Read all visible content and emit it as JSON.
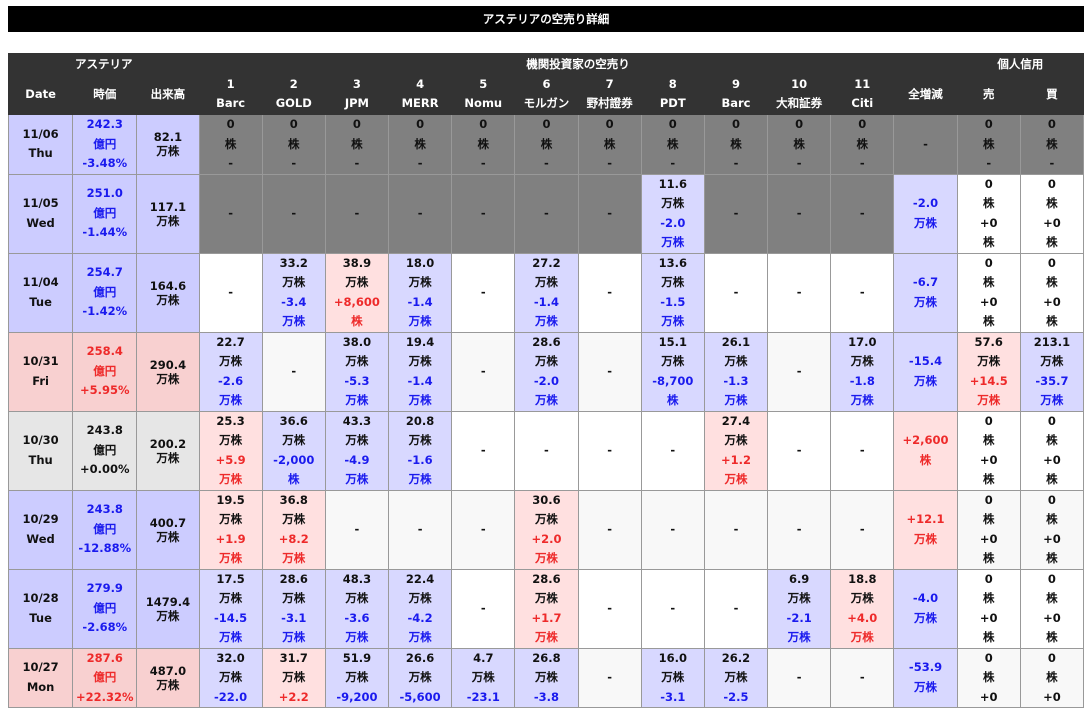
{
  "title": "アステリアの空売り詳細",
  "colors": {
    "down_text": "#1a1aee",
    "up_text": "#ee2a2a",
    "down_bg": "#d8d8ff",
    "up_bg": "#ffe0e0",
    "header_bg": "#333333",
    "no_data_bg": "#808080"
  },
  "header": {
    "group_company": "アステリア",
    "group_institutions": "機関投資家の空売り",
    "group_individual": "個人信用",
    "date": "Date",
    "price": "時価",
    "volume": "出来高",
    "brokers": [
      {
        "no": "1",
        "name": "Barc"
      },
      {
        "no": "2",
        "name": "GOLD"
      },
      {
        "no": "3",
        "name": "JPM"
      },
      {
        "no": "4",
        "name": "MERR"
      },
      {
        "no": "5",
        "name": "Nomu"
      },
      {
        "no": "6",
        "name": "モルガン"
      },
      {
        "no": "7",
        "name": "野村證券"
      },
      {
        "no": "8",
        "name": "PDT"
      },
      {
        "no": "9",
        "name": "Barc"
      },
      {
        "no": "10",
        "name": "大和証券"
      },
      {
        "no": "11",
        "name": "Citi"
      }
    ],
    "total": "全増減",
    "sell": "売",
    "buy": "買"
  },
  "rows": [
    {
      "date": "11/06",
      "dow": "Thu",
      "tone": "down",
      "price": "242.3",
      "price_unit": "億円",
      "pct": "-3.48%",
      "volume": "82.1",
      "volume_unit": "万株",
      "alt": false,
      "brokers": [
        {
          "bg": "gray",
          "value": "0",
          "unit": "株",
          "change": "-"
        },
        {
          "bg": "gray",
          "value": "0",
          "unit": "株",
          "change": "-"
        },
        {
          "bg": "gray",
          "value": "0",
          "unit": "株",
          "change": "-"
        },
        {
          "bg": "gray",
          "value": "0",
          "unit": "株",
          "change": "-"
        },
        {
          "bg": "gray",
          "value": "0",
          "unit": "株",
          "change": "-"
        },
        {
          "bg": "gray",
          "value": "0",
          "unit": "株",
          "change": "-"
        },
        {
          "bg": "gray",
          "value": "0",
          "unit": "株",
          "change": "-"
        },
        {
          "bg": "gray",
          "value": "0",
          "unit": "株",
          "change": "-"
        },
        {
          "bg": "gray",
          "value": "0",
          "unit": "株",
          "change": "-"
        },
        {
          "bg": "gray",
          "value": "0",
          "unit": "株",
          "change": "-"
        },
        {
          "bg": "gray",
          "value": "0",
          "unit": "株",
          "change": "-"
        }
      ],
      "total": {
        "bg": "gray",
        "value": "-"
      },
      "sell": {
        "bg": "gray",
        "value": "0",
        "unit": "株",
        "change": "-"
      },
      "buy": {
        "bg": "gray",
        "value": "0",
        "unit": "株",
        "change": "-"
      }
    },
    {
      "date": "11/05",
      "dow": "Wed",
      "tone": "down",
      "price": "251.0",
      "price_unit": "億円",
      "pct": "-1.44%",
      "volume": "117.1",
      "volume_unit": "万株",
      "alt": false,
      "brokers": [
        {
          "bg": "gray",
          "value": "-"
        },
        {
          "bg": "gray",
          "value": "-"
        },
        {
          "bg": "gray",
          "value": "-"
        },
        {
          "bg": "gray",
          "value": "-"
        },
        {
          "bg": "gray",
          "value": "-"
        },
        {
          "bg": "gray",
          "value": "-"
        },
        {
          "bg": "gray",
          "value": "-"
        },
        {
          "bg": "down",
          "value": "11.6",
          "unit": "万株",
          "change": "-2.0",
          "change_unit": "万株"
        },
        {
          "bg": "gray",
          "value": "-"
        },
        {
          "bg": "gray",
          "value": "-"
        },
        {
          "bg": "gray",
          "value": "-"
        }
      ],
      "total": {
        "bg": "down",
        "change": "-2.0",
        "change_unit": "万株"
      },
      "sell": {
        "bg": "white",
        "value": "0",
        "unit": "株",
        "change": "+0",
        "change_unit": "株"
      },
      "buy": {
        "bg": "white",
        "value": "0",
        "unit": "株",
        "change": "+0",
        "change_unit": "株"
      }
    },
    {
      "date": "11/04",
      "dow": "Tue",
      "tone": "down",
      "price": "254.7",
      "price_unit": "億円",
      "pct": "-1.42%",
      "volume": "164.6",
      "volume_unit": "万株",
      "alt": false,
      "brokers": [
        {
          "value": "-"
        },
        {
          "bg": "down",
          "value": "33.2",
          "unit": "万株",
          "change": "-3.4",
          "change_unit": "万株"
        },
        {
          "bg": "up",
          "value": "38.9",
          "unit": "万株",
          "change": "+8,600",
          "change_unit": "株"
        },
        {
          "bg": "down",
          "value": "18.0",
          "unit": "万株",
          "change": "-1.4",
          "change_unit": "万株"
        },
        {
          "value": "-"
        },
        {
          "bg": "down",
          "value": "27.2",
          "unit": "万株",
          "change": "-1.4",
          "change_unit": "万株"
        },
        {
          "value": "-"
        },
        {
          "bg": "down",
          "value": "13.6",
          "unit": "万株",
          "change": "-1.5",
          "change_unit": "万株"
        },
        {
          "value": "-"
        },
        {
          "value": "-"
        },
        {
          "value": "-"
        }
      ],
      "total": {
        "bg": "down",
        "change": "-6.7",
        "change_unit": "万株"
      },
      "sell": {
        "value": "0",
        "unit": "株",
        "change": "+0",
        "change_unit": "株"
      },
      "buy": {
        "value": "0",
        "unit": "株",
        "change": "+0",
        "change_unit": "株"
      }
    },
    {
      "date": "10/31",
      "dow": "Fri",
      "tone": "up",
      "price": "258.4",
      "price_unit": "億円",
      "pct": "+5.95%",
      "volume": "290.4",
      "volume_unit": "万株",
      "alt": true,
      "brokers": [
        {
          "bg": "down",
          "value": "22.7",
          "unit": "万株",
          "change": "-2.6",
          "change_unit": "万株"
        },
        {
          "value": "-"
        },
        {
          "bg": "down",
          "value": "38.0",
          "unit": "万株",
          "change": "-5.3",
          "change_unit": "万株"
        },
        {
          "bg": "down",
          "value": "19.4",
          "unit": "万株",
          "change": "-1.4",
          "change_unit": "万株"
        },
        {
          "value": "-"
        },
        {
          "bg": "down",
          "value": "28.6",
          "unit": "万株",
          "change": "-2.0",
          "change_unit": "万株"
        },
        {
          "value": "-"
        },
        {
          "bg": "down",
          "value": "15.1",
          "unit": "万株",
          "change": "-8,700",
          "change_unit": "株"
        },
        {
          "bg": "down",
          "value": "26.1",
          "unit": "万株",
          "change": "-1.3",
          "change_unit": "万株"
        },
        {
          "value": "-"
        },
        {
          "bg": "down",
          "value": "17.0",
          "unit": "万株",
          "change": "-1.8",
          "change_unit": "万株"
        }
      ],
      "total": {
        "bg": "down",
        "change": "-15.4",
        "change_unit": "万株"
      },
      "sell": {
        "bg": "up",
        "value": "57.6",
        "unit": "万株",
        "change": "+14.5",
        "change_unit": "万株"
      },
      "buy": {
        "bg": "down",
        "value": "213.1",
        "unit": "万株",
        "change": "-35.7",
        "change_unit": "万株"
      }
    },
    {
      "date": "10/30",
      "dow": "Thu",
      "tone": "flat",
      "price": "243.8",
      "price_unit": "億円",
      "pct": "+0.00%",
      "volume": "200.2",
      "volume_unit": "万株",
      "alt": false,
      "brokers": [
        {
          "bg": "up",
          "value": "25.3",
          "unit": "万株",
          "change": "+5.9",
          "change_unit": "万株"
        },
        {
          "bg": "down",
          "value": "36.6",
          "unit": "万株",
          "change": "-2,000",
          "change_unit": "株"
        },
        {
          "bg": "down",
          "value": "43.3",
          "unit": "万株",
          "change": "-4.9",
          "change_unit": "万株"
        },
        {
          "bg": "down",
          "value": "20.8",
          "unit": "万株",
          "change": "-1.6",
          "change_unit": "万株"
        },
        {
          "value": "-"
        },
        {
          "value": "-"
        },
        {
          "value": "-"
        },
        {
          "value": "-"
        },
        {
          "bg": "up",
          "value": "27.4",
          "unit": "万株",
          "change": "+1.2",
          "change_unit": "万株"
        },
        {
          "value": "-"
        },
        {
          "value": "-"
        }
      ],
      "total": {
        "bg": "up",
        "change": "+2,600",
        "change_unit": "株"
      },
      "sell": {
        "value": "0",
        "unit": "株",
        "change": "+0",
        "change_unit": "株"
      },
      "buy": {
        "value": "0",
        "unit": "株",
        "change": "+0",
        "change_unit": "株"
      }
    },
    {
      "date": "10/29",
      "dow": "Wed",
      "tone": "down",
      "price": "243.8",
      "price_unit": "億円",
      "pct": "-12.88%",
      "volume": "400.7",
      "volume_unit": "万株",
      "alt": true,
      "brokers": [
        {
          "bg": "up",
          "value": "19.5",
          "unit": "万株",
          "change": "+1.9",
          "change_unit": "万株"
        },
        {
          "bg": "up",
          "value": "36.8",
          "unit": "万株",
          "change": "+8.2",
          "change_unit": "万株"
        },
        {
          "value": "-"
        },
        {
          "value": "-"
        },
        {
          "value": "-"
        },
        {
          "bg": "up",
          "value": "30.6",
          "unit": "万株",
          "change": "+2.0",
          "change_unit": "万株"
        },
        {
          "value": "-"
        },
        {
          "value": "-"
        },
        {
          "value": "-"
        },
        {
          "value": "-"
        },
        {
          "value": "-"
        }
      ],
      "total": {
        "bg": "up",
        "change": "+12.1",
        "change_unit": "万株"
      },
      "sell": {
        "value": "0",
        "unit": "株",
        "change": "+0",
        "change_unit": "株"
      },
      "buy": {
        "value": "0",
        "unit": "株",
        "change": "+0",
        "change_unit": "株"
      }
    },
    {
      "date": "10/28",
      "dow": "Tue",
      "tone": "down",
      "price": "279.9",
      "price_unit": "億円",
      "pct": "-2.68%",
      "volume": "1479.4",
      "volume_unit": "万株",
      "alt": false,
      "brokers": [
        {
          "bg": "down",
          "value": "17.5",
          "unit": "万株",
          "change": "-14.5",
          "change_unit": "万株"
        },
        {
          "bg": "down",
          "value": "28.6",
          "unit": "万株",
          "change": "-3.1",
          "change_unit": "万株"
        },
        {
          "bg": "down",
          "value": "48.3",
          "unit": "万株",
          "change": "-3.6",
          "change_unit": "万株"
        },
        {
          "bg": "down",
          "value": "22.4",
          "unit": "万株",
          "change": "-4.2",
          "change_unit": "万株"
        },
        {
          "value": "-"
        },
        {
          "bg": "up",
          "value": "28.6",
          "unit": "万株",
          "change": "+1.7",
          "change_unit": "万株"
        },
        {
          "value": "-"
        },
        {
          "value": "-"
        },
        {
          "value": "-"
        },
        {
          "bg": "down",
          "value": "6.9",
          "unit": "万株",
          "change": "-2.1",
          "change_unit": "万株"
        },
        {
          "bg": "up",
          "value": "18.8",
          "unit": "万株",
          "change": "+4.0",
          "change_unit": "万株"
        }
      ],
      "total": {
        "bg": "down",
        "change": "-4.0",
        "change_unit": "万株"
      },
      "sell": {
        "value": "0",
        "unit": "株",
        "change": "+0",
        "change_unit": "株"
      },
      "buy": {
        "value": "0",
        "unit": "株",
        "change": "+0",
        "change_unit": "株"
      }
    },
    {
      "date": "10/27",
      "dow": "Mon",
      "tone": "up",
      "price": "287.6",
      "price_unit": "億円",
      "pct": "+22.32%",
      "volume": "487.0",
      "volume_unit": "万株",
      "alt": true,
      "brokers": [
        {
          "bg": "down",
          "value": "32.0",
          "unit": "万株",
          "change": "-22.0"
        },
        {
          "bg": "up",
          "value": "31.7",
          "unit": "万株",
          "change": "+2.2"
        },
        {
          "bg": "down",
          "value": "51.9",
          "unit": "万株",
          "change": "-9,200"
        },
        {
          "bg": "down",
          "value": "26.6",
          "unit": "万株",
          "change": "-5,600"
        },
        {
          "bg": "down",
          "value": "4.7",
          "unit": "万株",
          "change": "-23.1"
        },
        {
          "bg": "down",
          "value": "26.8",
          "unit": "万株",
          "change": "-3.8"
        },
        {
          "value": "-"
        },
        {
          "bg": "down",
          "value": "16.0",
          "unit": "万株",
          "change": "-3.1"
        },
        {
          "bg": "down",
          "value": "26.2",
          "unit": "万株",
          "change": "-2.5"
        },
        {
          "value": "-"
        },
        {
          "value": "-"
        }
      ],
      "total": {
        "bg": "down",
        "change": "-53.9",
        "change_unit": "万株"
      },
      "sell": {
        "value": "0",
        "unit": "株",
        "change": "+0"
      },
      "buy": {
        "value": "0",
        "unit": "株",
        "change": "+0"
      }
    }
  ]
}
